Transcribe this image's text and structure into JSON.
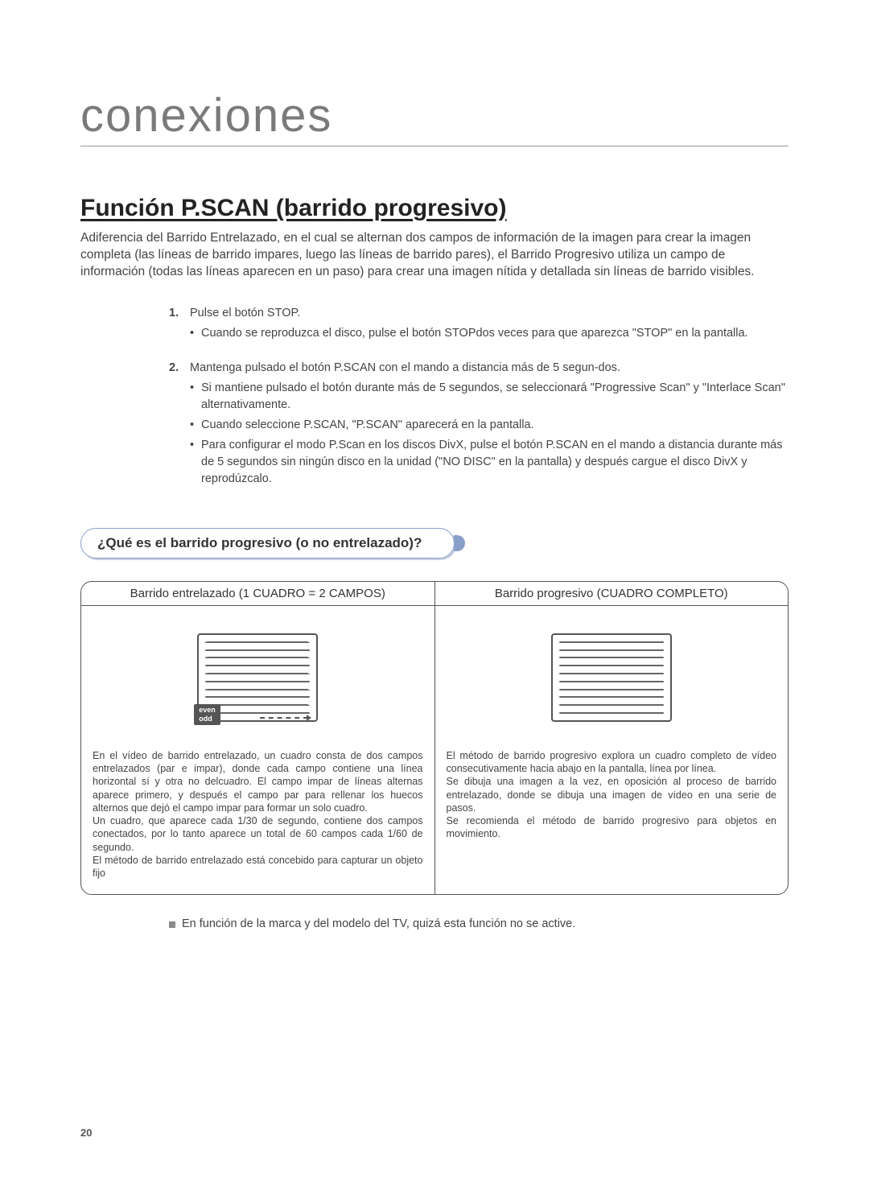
{
  "page": {
    "chapter_title": "conexiones",
    "page_number": "20",
    "colors": {
      "text": "#333333",
      "muted": "#7a7a7a",
      "border": "#555555",
      "pill_border": "#8aa0c8",
      "pill_shadow": "#c7cfe0",
      "background": "#ffffff"
    }
  },
  "section": {
    "title": "Función P.SCAN (barrido progresivo)",
    "intro": "Adiferencia del Barrido Entrelazado, en el cual se alternan dos campos de información de la imagen para crear la imagen completa (las líneas de barrido impares, luego las líneas de barrido pares), el Barrido Progresivo utiliza un campo de información (todas las líneas aparecen en un paso) para crear una imagen nítida y detallada sin líneas de barrido visibles."
  },
  "steps": [
    {
      "num": "1.",
      "text": "Pulse el botón STOP.",
      "bullets": [
        "Cuando se reproduzca el disco, pulse el botón STOPdos veces para que aparezca \"STOP\" en la pantalla."
      ]
    },
    {
      "num": "2.",
      "text": "Mantenga pulsado el botón P.SCAN con el mando a distancia más de 5 segun-dos.",
      "bullets": [
        "Si mantiene pulsado el botón durante más de 5 segundos, se seleccionará \"Progressive Scan\" y \"Interlace Scan\" alternativamente.",
        "Cuando seleccione P.SCAN, \"P.SCAN\" aparecerá en la pantalla.",
        "Para configurar el modo P.Scan en los discos DivX, pulse el botón P.SCAN en el mando a distancia durante más de 5 segundos sin ningún disco en la unidad (\"NO DISC\" en la pantalla) y después cargue el disco DivX y reprodúzcalo."
      ]
    }
  ],
  "callout": {
    "question": "¿Qué es el barrido progresivo (o no entrelazado)?"
  },
  "compare": {
    "left": {
      "header": "Barrido entrelazado (1 CUADRO = 2 CAMPOS)",
      "label_even": "even",
      "label_odd": "odd",
      "text": "En el vídeo de barrido entrelazado, un cuadro consta de dos campos entrelazados (par e impar), donde cada campo contiene una línea horizontal sí y otra no delcuadro. El campo impar de líneas alternas aparece primero, y después el campo par para rellenar los huecos alternos que dejó el campo impar para formar un solo cuadro.\nUn cuadro, que aparece cada 1/30 de segundo, contiene dos campos conectados, por lo tanto aparece un total de 60 campos cada 1/60 de segundo.\nEl método de barrido entrelazado está concebido para capturar un objeto fijo"
    },
    "right": {
      "header": "Barrido progresivo (CUADRO COMPLETO)",
      "text": "El método de barrido progresivo explora un cuadro completo de vídeo consecutivamente hacia abajo en la pantalla, línea por línea.\nSe dibuja una imagen a la vez, en oposición al proceso de barrido entrelazado, donde se dibuja una imagen de vídeo en una serie de pasos.\nSe recomienda el método de barrido progresivo para objetos en movimiento."
    }
  },
  "footnote": "En función de la marca y del modelo del TV, quizá esta función no se active.",
  "illustration": {
    "interlaced_lines": 10,
    "progressive_lines": 10,
    "screen_size": {
      "w": 150,
      "h": 110
    },
    "line_color": "#666666"
  }
}
